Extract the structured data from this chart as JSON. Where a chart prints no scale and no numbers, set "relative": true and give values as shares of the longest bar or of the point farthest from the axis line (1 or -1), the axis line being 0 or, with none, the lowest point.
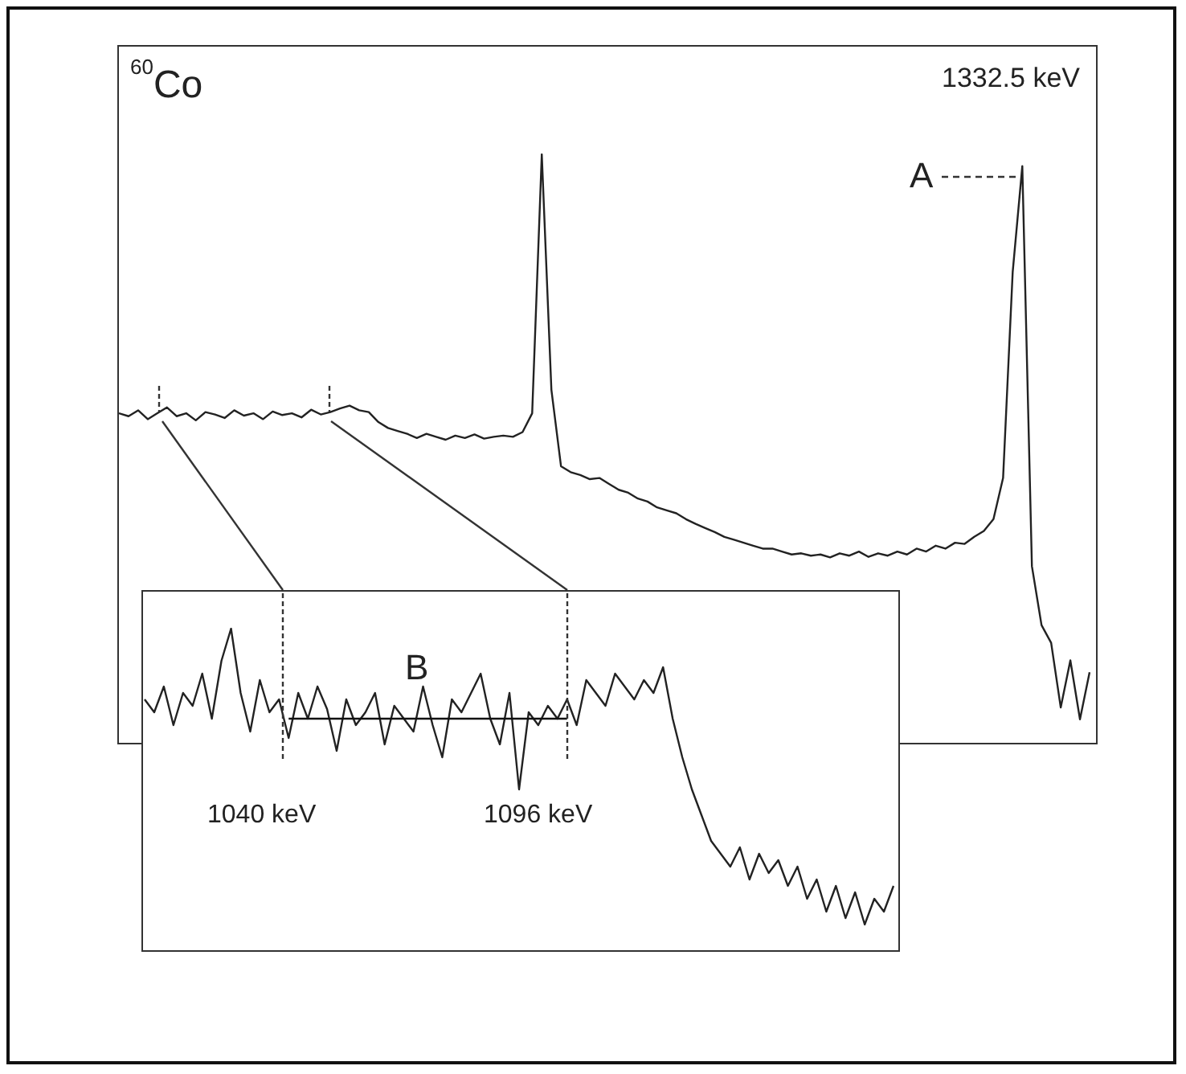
{
  "chart_data": [
    {
      "type": "line",
      "title": "$^{60}$Co",
      "annotations": [
        "1332.5 keV",
        "A"
      ],
      "relative": true,
      "categories": [
        null,
        null,
        null,
        null,
        null,
        null,
        null,
        null,
        null,
        null,
        null,
        null,
        null,
        null,
        null,
        null,
        null,
        null,
        null,
        null,
        null,
        null,
        null,
        null,
        null,
        null,
        null,
        null,
        null,
        null,
        null,
        null,
        null,
        null,
        null,
        null,
        null,
        null,
        null,
        null,
        null,
        null,
        null,
        null,
        null,
        null,
        null,
        null,
        null,
        null,
        null,
        null,
        null,
        null,
        null,
        null,
        null,
        null,
        null,
        null,
        null,
        null,
        null,
        null,
        null,
        null,
        null,
        null,
        null,
        null,
        null,
        null,
        null,
        null,
        null,
        null,
        null,
        null,
        null,
        null,
        null,
        null,
        null,
        null,
        null,
        null,
        null,
        null,
        null,
        null,
        null,
        null,
        null,
        null,
        null,
        null,
        null,
        null,
        null,
        null,
        null,
        null
      ],
      "series": [
        {
          "color": "#222222",
          "values": [
            0.56,
            0.555,
            0.565,
            0.55,
            0.56,
            0.57,
            0.555,
            0.56,
            0.548,
            0.562,
            0.558,
            0.552,
            0.565,
            0.556,
            0.56,
            0.55,
            0.563,
            0.557,
            0.56,
            0.553,
            0.566,
            0.558,
            0.562,
            0.568,
            0.573,
            0.565,
            0.562,
            0.545,
            0.535,
            0.53,
            0.525,
            0.518,
            0.525,
            0.52,
            0.515,
            0.522,
            0.518,
            0.524,
            0.517,
            0.52,
            0.522,
            0.52,
            0.528,
            0.56,
            1,
            0.6,
            0.47,
            0.46,
            0.455,
            0.448,
            0.45,
            0.44,
            0.43,
            0.425,
            0.415,
            0.41,
            0.4,
            0.395,
            0.39,
            0.38,
            0.372,
            0.365,
            0.358,
            0.35,
            0.345,
            0.34,
            0.335,
            0.33,
            0.33,
            0.325,
            0.32,
            0.322,
            0.318,
            0.32,
            0.315,
            0.322,
            0.318,
            0.325,
            0.316,
            0.322,
            0.318,
            0.325,
            0.32,
            0.33,
            0.325,
            0.335,
            0.33,
            0.34,
            0.338,
            0.35,
            0.36,
            0.38,
            0.45,
            0.8,
            0.98,
            0.3,
            0.2,
            0.17,
            0.06,
            0.14,
            0.04,
            0.12
          ]
        }
      ]
    },
    {
      "type": "line",
      "annotations": [
        "B",
        "1040 keV",
        "1096 keV"
      ],
      "relative": true,
      "categories": [
        null,
        null,
        null,
        null,
        null,
        null,
        null,
        null,
        null,
        null,
        null,
        null,
        null,
        null,
        null,
        null,
        null,
        null,
        null,
        null,
        null,
        null,
        null,
        null,
        null,
        null,
        null,
        null,
        null,
        null,
        null,
        null,
        null,
        null,
        null,
        null,
        null,
        null,
        null,
        null,
        null,
        null,
        null,
        null,
        null,
        null,
        null,
        null,
        null,
        null,
        null,
        null,
        null,
        null,
        null,
        null,
        null,
        null,
        null,
        null,
        null,
        null,
        null,
        null,
        null,
        null,
        null,
        null,
        null,
        null,
        null,
        null,
        null,
        null,
        null,
        null,
        null,
        null,
        null
      ],
      "series": [
        {
          "color": "#222222",
          "values": [
            0.78,
            0.74,
            0.82,
            0.7,
            0.8,
            0.76,
            0.86,
            0.72,
            0.9,
            1.0,
            0.8,
            0.68,
            0.84,
            0.74,
            0.78,
            0.66,
            0.8,
            0.72,
            0.82,
            0.75,
            0.62,
            0.78,
            0.7,
            0.74,
            0.8,
            0.64,
            0.76,
            0.72,
            0.68,
            0.82,
            0.7,
            0.6,
            0.78,
            0.74,
            0.8,
            0.86,
            0.72,
            0.64,
            0.8,
            0.5,
            0.74,
            0.7,
            0.76,
            0.72,
            0.78,
            0.7,
            0.84,
            0.8,
            0.76,
            0.86,
            0.82,
            0.78,
            0.84,
            0.8,
            0.88,
            0.72,
            0.6,
            0.5,
            0.42,
            0.34,
            0.3,
            0.26,
            0.32,
            0.22,
            0.3,
            0.24,
            0.28,
            0.2,
            0.26,
            0.16,
            0.22,
            0.12,
            0.2,
            0.1,
            0.18,
            0.08,
            0.16,
            0.12,
            0.2
          ]
        },
        {
          "color": "#111111",
          "values": [
            null,
            null,
            null,
            null,
            null,
            null,
            null,
            null,
            null,
            null,
            null,
            null,
            null,
            null,
            null,
            0.72,
            0.72,
            0.72,
            0.72,
            0.72,
            0.72,
            0.72,
            0.72,
            0.72,
            0.72,
            0.72,
            0.72,
            0.72,
            0.72,
            0.72,
            0.72,
            0.72,
            0.72,
            0.72,
            0.72,
            0.72,
            0.72,
            0.72,
            0.72,
            0.72,
            0.72,
            0.72,
            0.72,
            0.72,
            0.72,
            null,
            null,
            null,
            null,
            null,
            null,
            null,
            null,
            null,
            null,
            null,
            null,
            null,
            null,
            null,
            null,
            null,
            null,
            null,
            null,
            null,
            null,
            null,
            null,
            null,
            null,
            null,
            null,
            null,
            null,
            null,
            null,
            null,
            null
          ]
        }
      ]
    }
  ]
}
